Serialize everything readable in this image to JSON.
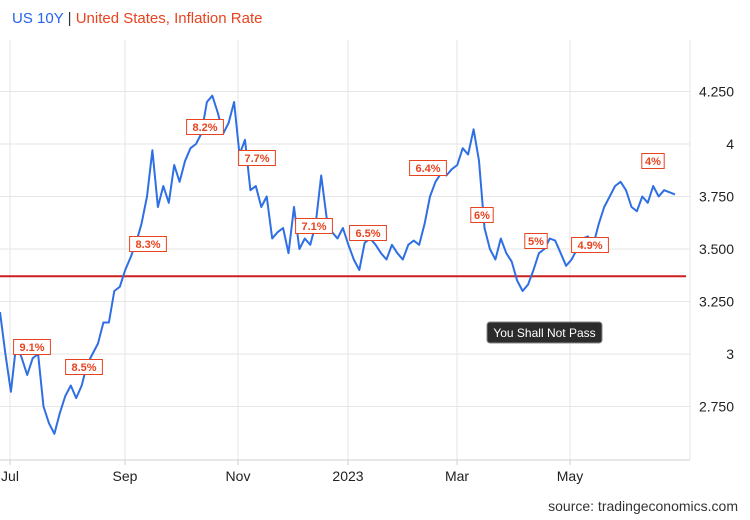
{
  "title": {
    "series1": "US 10Y",
    "separator": "|",
    "series2": "United States, Inflation Rate"
  },
  "source": "source: tradingeconomics.com",
  "colors": {
    "line": "#2f6fe4",
    "support_line": "#cc1f1f",
    "inflation_label": "#e8431f",
    "grid": "#e6e6e6",
    "annotation_bg": "#2b2b2b"
  },
  "chart_data": {
    "type": "line",
    "series": [
      {
        "name": "US 10Y",
        "x": [
          0,
          3,
          6,
          9,
          12,
          15,
          18,
          21,
          24,
          27,
          30,
          33,
          36,
          39,
          42,
          45,
          48,
          51,
          54,
          57,
          60,
          63,
          66,
          69,
          72,
          75,
          78,
          81,
          84,
          87,
          90,
          93,
          96,
          99,
          102,
          105,
          108,
          111,
          114,
          117,
          120,
          123,
          126,
          129,
          132,
          135,
          138,
          141,
          144,
          147,
          150,
          153,
          156,
          159,
          162,
          165,
          168,
          171,
          174,
          177,
          180,
          183,
          186,
          189,
          192,
          195,
          198,
          201,
          204,
          207,
          210,
          213,
          216,
          219,
          222,
          225,
          228,
          231,
          234,
          237,
          240,
          243,
          246,
          249,
          252,
          255,
          258,
          261,
          264,
          267,
          270,
          273,
          276,
          279,
          282,
          285,
          288,
          291,
          294,
          297,
          300,
          303,
          306,
          309,
          312,
          315,
          318,
          321,
          324,
          327,
          330,
          333,
          336,
          339,
          342,
          345,
          348,
          351,
          354,
          357,
          360,
          363,
          366,
          369,
          372
        ],
        "y": [
          3.2,
          3.0,
          2.82,
          3.05,
          2.98,
          2.9,
          2.98,
          3.0,
          2.75,
          2.67,
          2.62,
          2.72,
          2.8,
          2.85,
          2.79,
          2.85,
          2.95,
          3.0,
          3.05,
          3.15,
          3.15,
          3.3,
          3.32,
          3.4,
          3.46,
          3.53,
          3.62,
          3.75,
          3.97,
          3.7,
          3.8,
          3.72,
          3.9,
          3.82,
          3.92,
          3.98,
          4.0,
          4.05,
          4.2,
          4.23,
          4.15,
          4.05,
          4.1,
          4.2,
          3.95,
          4.02,
          3.78,
          3.8,
          3.7,
          3.75,
          3.55,
          3.58,
          3.6,
          3.48,
          3.7,
          3.5,
          3.55,
          3.52,
          3.62,
          3.85,
          3.65,
          3.58,
          3.55,
          3.6,
          3.52,
          3.45,
          3.4,
          3.53,
          3.55,
          3.52,
          3.48,
          3.45,
          3.52,
          3.48,
          3.45,
          3.52,
          3.54,
          3.52,
          3.62,
          3.75,
          3.82,
          3.86,
          3.85,
          3.88,
          3.9,
          3.98,
          3.95,
          4.07,
          3.92,
          3.6,
          3.5,
          3.45,
          3.55,
          3.48,
          3.44,
          3.35,
          3.3,
          3.33,
          3.4,
          3.48,
          3.5,
          3.55,
          3.54,
          3.48,
          3.42,
          3.45,
          3.5,
          3.55,
          3.56,
          3.52,
          3.62,
          3.7,
          3.75,
          3.8,
          3.82,
          3.78,
          3.7,
          3.68,
          3.75,
          3.72,
          3.8,
          3.75,
          3.78,
          3.77,
          3.76
        ]
      }
    ],
    "x_tick_labels": [
      "Jul",
      "Sep",
      "Nov",
      "2023",
      "Mar",
      "May"
    ],
    "y_tick_labels": [
      "4.250",
      "4",
      "3.750",
      "3.500",
      "3.250",
      "3",
      "2.750"
    ],
    "ylim": [
      2.5,
      4.5
    ],
    "grid": true,
    "horizontal_line": {
      "value": 3.37
    },
    "inflation_labels": [
      "9.1%",
      "8.5%",
      "8.3%",
      "8.2%",
      "7.7%",
      "7.1%",
      "6.5%",
      "6.4%",
      "6%",
      "5%",
      "4.9%",
      "4%"
    ],
    "annotation": "You Shall Not Pass"
  }
}
